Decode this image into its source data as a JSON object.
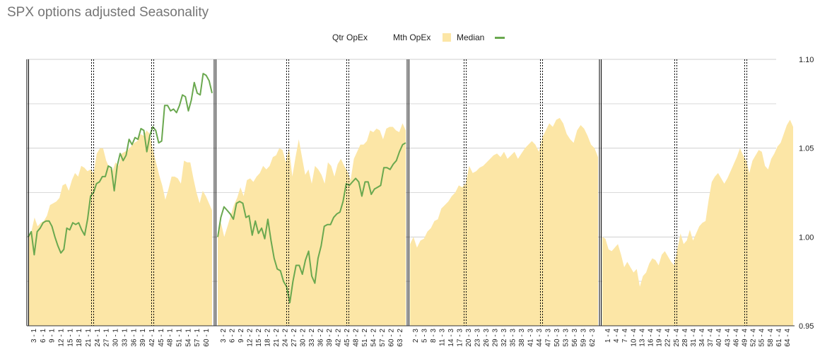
{
  "title": "SPX options adjusted Seasonality",
  "legend": {
    "qtr_opex": "Qtr OpEx",
    "mth_opex": "Mth OpEx",
    "median": "Median",
    "median_color": "#fce6a6",
    "line_color": "#6aa84f"
  },
  "chart_data": {
    "type": "area",
    "title": "SPX options adjusted Seasonality",
    "ylim": [
      0.95,
      1.1
    ],
    "y_ticks": [
      "1.10",
      "1.05",
      "1.00",
      "0.95"
    ],
    "y_tick_values": [
      1.1,
      1.05,
      1.0,
      0.95
    ],
    "grid": true,
    "legend_position": "top",
    "panels": [
      {
        "quarter": 1,
        "x_labels": [
          "3 - 1",
          "6 - 1",
          "9 - 1",
          "12 - 1",
          "15 - 1",
          "18 - 1",
          "21 - 1",
          "24 - 1",
          "27 - 1",
          "30 - 1",
          "33 - 1",
          "36 - 1",
          "39 - 1",
          "42 - 1",
          "45 - 1",
          "48 - 1",
          "51 - 1",
          "54 - 1",
          "57 - 1",
          "60 - 1"
        ],
        "median": [
          0.999,
          1.003,
          1.011,
          1.006,
          1.008,
          1.009,
          1.012,
          1.018,
          1.019,
          1.02,
          1.022,
          1.029,
          1.03,
          1.026,
          1.032,
          1.036,
          1.034,
          1.04,
          1.039,
          1.037,
          1.038,
          1.036,
          1.047,
          1.05,
          1.05,
          1.043,
          1.039,
          1.037,
          1.042,
          1.04,
          1.047,
          1.048,
          1.049,
          1.051,
          1.053,
          1.054,
          1.058,
          1.057,
          1.06,
          1.058,
          1.049,
          1.042,
          1.035,
          1.029,
          1.021,
          1.027,
          1.034,
          1.034,
          1.033,
          1.03,
          1.043,
          1.042,
          1.042,
          1.033,
          1.025,
          1.019,
          1.026,
          1.023,
          1.019,
          1.015
        ],
        "line": [
          1.0,
          1.003,
          0.99,
          1.003,
          1.005,
          1.008,
          1.009,
          1.009,
          1.006,
          1.0,
          0.995,
          0.991,
          0.993,
          1.005,
          1.004,
          1.008,
          1.007,
          1.008,
          1.004,
          1.001,
          1.01,
          1.023,
          1.025,
          1.03,
          1.031,
          1.034,
          1.034,
          1.04,
          1.039,
          1.026,
          1.04,
          1.047,
          1.043,
          1.046,
          1.055,
          1.052,
          1.056,
          1.055,
          1.061,
          1.06,
          1.048,
          1.057,
          1.062,
          1.06,
          1.053,
          1.054,
          1.074,
          1.074,
          1.071,
          1.072,
          1.07,
          1.074,
          1.08,
          1.079,
          1.071,
          1.077,
          1.087,
          1.081,
          1.08,
          1.092,
          1.091,
          1.088,
          1.081
        ],
        "qtr_opex": [
          21
        ],
        "mth_opex": [
          42
        ]
      },
      {
        "quarter": 2,
        "x_labels": [
          "3 - 2",
          "6 - 2",
          "9 - 2",
          "12 - 2",
          "15 - 2",
          "18 - 2",
          "21 - 2",
          "24 - 2",
          "27 - 2",
          "30 - 2",
          "33 - 2",
          "36 - 2",
          "39 - 2",
          "42 - 2",
          "45 - 2",
          "48 - 2",
          "51 - 2",
          "54 - 2",
          "57 - 2",
          "60 - 2",
          "63 - 2"
        ],
        "median": [
          1.002,
          1.008,
          1.0,
          1.006,
          1.012,
          1.018,
          1.022,
          1.028,
          1.023,
          1.032,
          1.033,
          1.031,
          1.034,
          1.036,
          1.04,
          1.038,
          1.04,
          1.045,
          1.046,
          1.05,
          1.049,
          1.042,
          1.05,
          1.034,
          1.045,
          1.055,
          1.045,
          1.035,
          1.038,
          1.03,
          1.04,
          1.038,
          1.035,
          1.03,
          1.042,
          1.04,
          1.034,
          1.041,
          1.044,
          1.04,
          1.037,
          1.032,
          1.044,
          1.048,
          1.052,
          1.052,
          1.054,
          1.06,
          1.059,
          1.061,
          1.06,
          1.055,
          1.061,
          1.062,
          1.062,
          1.06,
          1.059,
          1.064,
          1.06
        ],
        "line": [
          1.0,
          1.011,
          1.017,
          1.015,
          1.013,
          1.01,
          1.019,
          1.02,
          1.019,
          1.011,
          1.012,
          1.001,
          1.009,
          1.002,
          1.005,
          0.999,
          1.01,
          0.998,
          0.988,
          0.982,
          0.981,
          0.975,
          0.972,
          0.963,
          0.975,
          0.984,
          0.984,
          0.979,
          0.987,
          0.992,
          0.978,
          0.974,
          0.988,
          0.995,
          1.006,
          1.007,
          1.007,
          1.011,
          1.013,
          1.014,
          1.02,
          1.03,
          1.029,
          1.031,
          1.033,
          1.031,
          1.023,
          1.031,
          1.031,
          1.024,
          1.027,
          1.028,
          1.029,
          1.039,
          1.039,
          1.038,
          1.041,
          1.043,
          1.048,
          1.052,
          1.053
        ],
        "qtr_opex": [
          24
        ],
        "mth_opex": [
          45
        ]
      },
      {
        "quarter": 3,
        "x_labels": [
          "2 - 3",
          "5 - 3",
          "8 - 3",
          "11 - 3",
          "14 - 3",
          "17 - 3",
          "20 - 3",
          "23 - 3",
          "26 - 3",
          "29 - 3",
          "32 - 3",
          "35 - 3",
          "38 - 3",
          "41 - 3",
          "44 - 3",
          "47 - 3",
          "50 - 3",
          "53 - 3",
          "56 - 3",
          "59 - 3",
          "62 - 3"
        ],
        "median": [
          0.996,
          1.0,
          0.994,
          0.998,
          0.999,
          1.003,
          1.005,
          1.009,
          1.01,
          1.016,
          1.018,
          1.02,
          1.023,
          1.025,
          1.029,
          1.028,
          1.03,
          1.04,
          1.036,
          1.037,
          1.039,
          1.04,
          1.042,
          1.044,
          1.046,
          1.047,
          1.045,
          1.048,
          1.044,
          1.046,
          1.048,
          1.044,
          1.047,
          1.05,
          1.052,
          1.054,
          1.052,
          1.048,
          1.056,
          1.06,
          1.064,
          1.062,
          1.066,
          1.067,
          1.064,
          1.058,
          1.055,
          1.053,
          1.06,
          1.063,
          1.061,
          1.057,
          1.052,
          1.05,
          1.045
        ],
        "qtr_opex": [
          20
        ],
        "mth_opex": [
          45
        ]
      },
      {
        "quarter": 4,
        "x_labels": [
          "1 - 4",
          "4 - 4",
          "7 - 4",
          "10 - 4",
          "13 - 4",
          "16 - 4",
          "19 - 4",
          "22 - 4",
          "25 - 4",
          "28 - 4",
          "31 - 4",
          "34 - 4",
          "37 - 4",
          "40 - 4",
          "43 - 4",
          "46 - 4",
          "49 - 4",
          "52 - 4",
          "55 - 4",
          "58 - 4",
          "61 - 4",
          "64 - 4"
        ],
        "median": [
          1.0,
          0.999,
          0.993,
          0.992,
          0.994,
          0.996,
          0.99,
          0.983,
          0.986,
          0.983,
          0.98,
          0.982,
          0.972,
          0.978,
          0.98,
          0.985,
          0.988,
          0.987,
          0.984,
          0.99,
          0.992,
          0.989,
          0.986,
          0.984,
          0.993,
          1.002,
          0.996,
          0.998,
          1.004,
          0.998,
          1.002,
          1.006,
          1.008,
          1.009,
          1.021,
          1.031,
          1.034,
          1.036,
          1.033,
          1.03,
          1.033,
          1.037,
          1.041,
          1.045,
          1.05,
          1.046,
          1.043,
          1.036,
          1.043,
          1.046,
          1.049,
          1.048,
          1.04,
          1.038,
          1.044,
          1.047,
          1.051,
          1.053,
          1.058,
          1.063,
          1.066,
          1.062
        ],
        "qtr_opex": [
          25
        ],
        "mth_opex": [
          49
        ]
      }
    ]
  }
}
